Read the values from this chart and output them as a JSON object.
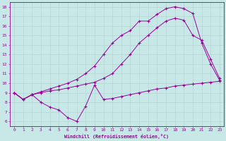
{
  "xlabel": "Windchill (Refroidissement éolien,°C)",
  "bg_color": "#c8e8e8",
  "line_color": "#990099",
  "xlim": [
    -0.5,
    23.5
  ],
  "ylim": [
    5.5,
    18.5
  ],
  "xticks": [
    0,
    1,
    2,
    3,
    4,
    5,
    6,
    7,
    8,
    9,
    10,
    11,
    12,
    13,
    14,
    15,
    16,
    17,
    18,
    19,
    20,
    21,
    22,
    23
  ],
  "yticks": [
    6,
    7,
    8,
    9,
    10,
    11,
    12,
    13,
    14,
    15,
    16,
    17,
    18
  ],
  "grid_color": "#b0d0d0",
  "marker": "+",
  "curve1_x": [
    0,
    1,
    2,
    3,
    4,
    5,
    6,
    7,
    8,
    9,
    10,
    11,
    12,
    13,
    14,
    15,
    16,
    17,
    18,
    19,
    20,
    21,
    22,
    23
  ],
  "curve1_y": [
    9.0,
    8.3,
    8.8,
    8.0,
    7.5,
    7.2,
    6.4,
    6.0,
    7.6,
    9.8,
    8.3,
    8.4,
    8.6,
    8.8,
    9.0,
    9.2,
    9.4,
    9.5,
    9.7,
    9.8,
    9.9,
    10.0,
    10.1,
    10.2
  ],
  "curve2_x": [
    0,
    1,
    2,
    3,
    4,
    5,
    6,
    7,
    8,
    9,
    10,
    11,
    12,
    13,
    14,
    15,
    16,
    17,
    18,
    19,
    20,
    21,
    22,
    23
  ],
  "curve2_y": [
    9.0,
    8.3,
    8.8,
    9.0,
    9.2,
    9.3,
    9.5,
    9.7,
    9.9,
    10.1,
    10.5,
    11.0,
    12.0,
    13.0,
    14.2,
    15.0,
    15.8,
    16.5,
    16.8,
    16.6,
    15.0,
    14.5,
    12.5,
    10.5
  ],
  "curve3_x": [
    0,
    1,
    2,
    3,
    4,
    5,
    6,
    7,
    8,
    9,
    10,
    11,
    12,
    13,
    14,
    15,
    16,
    17,
    18,
    19,
    20,
    21,
    22,
    23
  ],
  "curve3_y": [
    9.0,
    8.3,
    8.8,
    9.1,
    9.4,
    9.7,
    10.0,
    10.4,
    11.0,
    11.8,
    13.0,
    14.2,
    15.0,
    15.5,
    16.5,
    16.5,
    17.2,
    17.8,
    18.0,
    17.8,
    17.3,
    14.2,
    12.0,
    10.3
  ]
}
